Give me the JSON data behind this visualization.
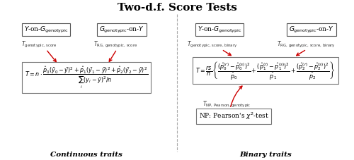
{
  "title": "Two-d.f. Score Tests",
  "title_fontsize": 11,
  "title_fontweight": "bold",
  "bg_color": "#ffffff",
  "left_box1_label": "$Y$-on-$G_{\\mathrm{genotypic}}$",
  "left_box2_label": "$G_{\\mathrm{genotypic}}$-on-$Y$",
  "left_sub1": "$T_{\\mathrm{genotypic,\\, score}}$",
  "left_sub2": "$T_{\\mathrm{RG,\\, genotypic,\\, score}}$",
  "left_formula": "$T = n \\cdot \\dfrac{\\hat{p}_0(\\bar{y}_0 - \\bar{y})^2 + \\hat{p}_1(\\bar{y}_1 - \\bar{y})^2 + \\hat{p}_2(\\bar{y}_2 - \\bar{y})^2}{\\sum_i(y_i - \\bar{y})^2/n}$",
  "right_box1_label": "$Y$-on-$G_{\\mathrm{genotypic}}$",
  "right_box2_label": "$G_{\\mathrm{genotypic}}$-on-$Y$",
  "right_sub1": "$T_{\\mathrm{genotypic,\\, score,\\, binary}}$",
  "right_sub2": "$T_{\\mathrm{RG,\\, genotypic,\\, score,\\, binary}}$",
  "right_formula": "$T = \\dfrac{rs}{n}\\left\\{\\dfrac{(\\hat{p}_0^{(r)} - \\hat{p}_0^{(s)})^2}{\\hat{p}_0} + \\dfrac{(\\hat{p}_1^{(r)} - \\hat{p}_1^{(s)})^2}{\\hat{p}_1} + \\dfrac{(\\hat{p}_2^{(r)} - \\hat{p}_2^{(s)})^2}{\\hat{p}_2}\\right\\}$",
  "np_sub": "$T_{\\mathrm{NP,\\, Pearson,\\, genotypic}}$",
  "np_label": "NP: Pearson's $\\chi^2$-test",
  "left_caption": "Continuous traits",
  "right_caption": "Binary traits",
  "arrow_color": "#cc0000",
  "label_fontsize": 6.5,
  "sub_fontsize": 5.5,
  "formula_fontsize": 5.8,
  "caption_fontsize": 7.5
}
